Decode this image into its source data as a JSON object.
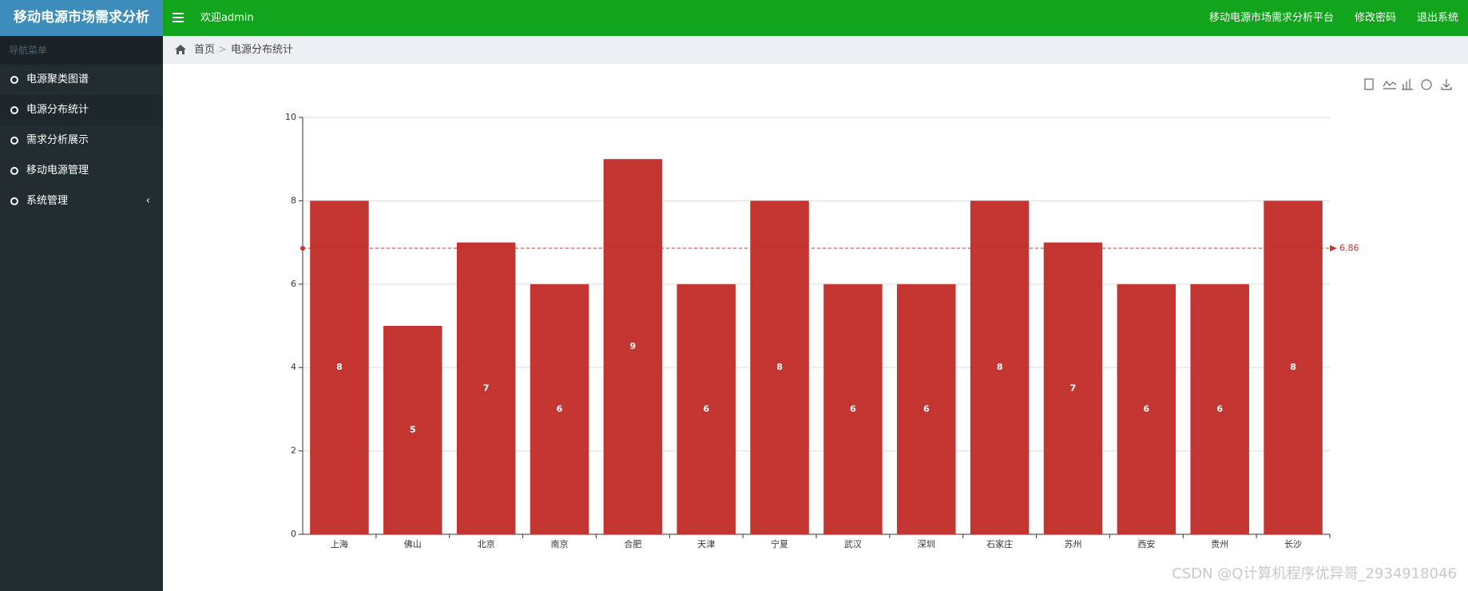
{
  "header": {
    "logo": "移动电源市场需求分析",
    "welcome": "欢迎admin",
    "links": [
      "移动电源市场需求分析平台",
      "修改密码",
      "退出系统"
    ]
  },
  "sidebar": {
    "title": "导航菜单",
    "items": [
      "电源聚类图谱",
      "电源分布统计",
      "需求分析展示",
      "移动电源管理",
      "系统管理"
    ]
  },
  "breadcrumb": [
    "首页",
    "电源分布统计"
  ],
  "chart_data": {
    "type": "bar",
    "categories": [
      "上海",
      "佛山",
      "北京",
      "南京",
      "合肥",
      "天津",
      "宁夏",
      "武汉",
      "深圳",
      "石家庄",
      "苏州",
      "西安",
      "贵州",
      "长沙"
    ],
    "values": [
      8,
      5,
      7,
      6,
      9,
      6,
      8,
      6,
      6,
      8,
      7,
      6,
      6,
      8
    ],
    "color": "#c23531",
    "ylim": [
      0,
      10
    ],
    "yticks": [
      0,
      2,
      4,
      6,
      8,
      10
    ],
    "grid": true,
    "mean_line": 6.86
  },
  "watermark": "CSDN @Q计算机程序优异哥_2934918046"
}
